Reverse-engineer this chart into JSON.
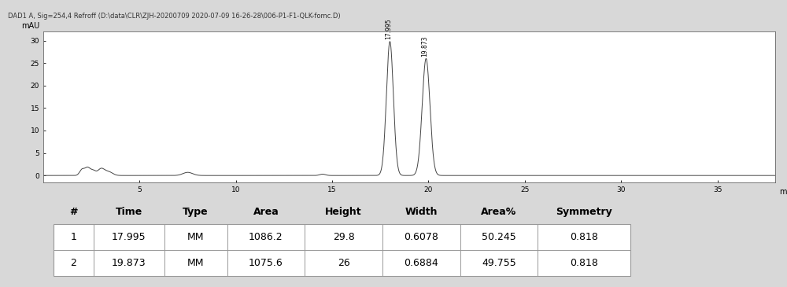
{
  "title": "DAD1 A, Sig=254,4 Refroff (D:\\data\\CLR\\ZJH-20200709 2020-07-09 16-26-28\\006-P1-F1-QLK-fomc.D)",
  "ylabel": "mAU",
  "xlabel": "min",
  "xlim": [
    0,
    38
  ],
  "ylim": [
    -1.5,
    32
  ],
  "yticks": [
    0,
    5,
    10,
    15,
    20,
    25,
    30
  ],
  "xticks": [
    5,
    10,
    15,
    20,
    25,
    30,
    35
  ],
  "peak1_time": 17.995,
  "peak1_height": 29.8,
  "peak1_sigma": 0.18,
  "peak2_time": 19.873,
  "peak2_height": 26.0,
  "peak2_sigma": 0.2,
  "table_headers": [
    "#",
    "Time",
    "Type",
    "Area",
    "Height",
    "Width",
    "Area%",
    "Symmetry"
  ],
  "table_rows": [
    [
      "1",
      "17.995",
      "MM",
      "1086.2",
      "29.8",
      "0.6078",
      "50.245",
      "0.818"
    ],
    [
      "2",
      "19.873",
      "MM",
      "1075.6",
      "26",
      "0.6884",
      "49.755",
      "0.818"
    ]
  ],
  "bg_color": "#d8d8d8",
  "plot_bg": "#ffffff",
  "line_color": "#444444",
  "title_bg": "#e8e8e8",
  "table_border": "#999999"
}
